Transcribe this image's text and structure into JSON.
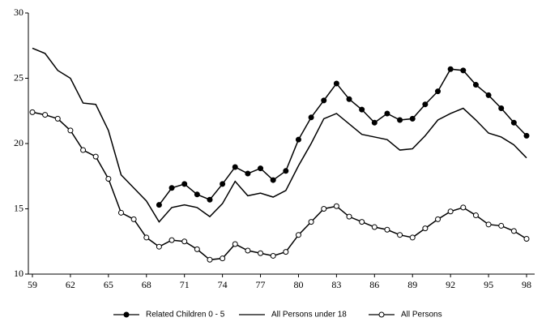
{
  "chart_data": {
    "type": "line",
    "x": [
      59,
      60,
      61,
      62,
      63,
      64,
      65,
      66,
      67,
      68,
      69,
      70,
      71,
      72,
      73,
      74,
      75,
      76,
      77,
      78,
      79,
      80,
      81,
      82,
      83,
      84,
      85,
      86,
      87,
      88,
      89,
      90,
      91,
      92,
      93,
      94,
      95,
      96,
      97,
      98
    ],
    "series": [
      {
        "name": "Related Children 0 - 5",
        "color": "#000000",
        "marker": "filled",
        "values": [
          null,
          null,
          null,
          null,
          null,
          null,
          null,
          null,
          null,
          null,
          15.3,
          16.6,
          16.9,
          16.1,
          15.7,
          16.9,
          18.2,
          17.7,
          18.1,
          17.2,
          17.9,
          20.3,
          22.0,
          23.3,
          24.6,
          23.4,
          22.6,
          21.6,
          22.3,
          21.8,
          21.9,
          23.0,
          24.0,
          25.7,
          25.6,
          24.5,
          23.7,
          22.7,
          21.6,
          20.6
        ]
      },
      {
        "name": "All Persons under 18",
        "color": "#000000",
        "marker": "none",
        "values": [
          27.3,
          26.9,
          25.6,
          25.0,
          23.1,
          23.0,
          21.0,
          17.6,
          16.6,
          15.6,
          14.0,
          15.1,
          15.3,
          15.1,
          14.4,
          15.4,
          17.1,
          16.0,
          16.2,
          15.9,
          16.4,
          18.3,
          20.0,
          21.9,
          22.3,
          21.5,
          20.7,
          20.5,
          20.3,
          19.5,
          19.6,
          20.6,
          21.8,
          22.3,
          22.7,
          21.8,
          20.8,
          20.5,
          19.9,
          18.9
        ]
      },
      {
        "name": "All Persons",
        "color": "#000000",
        "marker": "open",
        "values": [
          22.4,
          22.2,
          21.9,
          21.0,
          19.5,
          19.0,
          17.3,
          14.7,
          14.2,
          12.8,
          12.1,
          12.6,
          12.5,
          11.9,
          11.1,
          11.2,
          12.3,
          11.8,
          11.6,
          11.4,
          11.7,
          13.0,
          14.0,
          15.0,
          15.2,
          14.4,
          14.0,
          13.6,
          13.4,
          13.0,
          12.8,
          13.5,
          14.2,
          14.8,
          15.1,
          14.5,
          13.8,
          13.7,
          13.3,
          12.7
        ]
      }
    ],
    "xlim": [
      59,
      98
    ],
    "xticks": [
      59,
      62,
      65,
      68,
      71,
      74,
      77,
      80,
      83,
      86,
      89,
      92,
      95,
      98
    ],
    "ylim": [
      10,
      30
    ],
    "yticks": [
      10,
      15,
      20,
      25,
      30
    ],
    "legend": "bottom"
  }
}
